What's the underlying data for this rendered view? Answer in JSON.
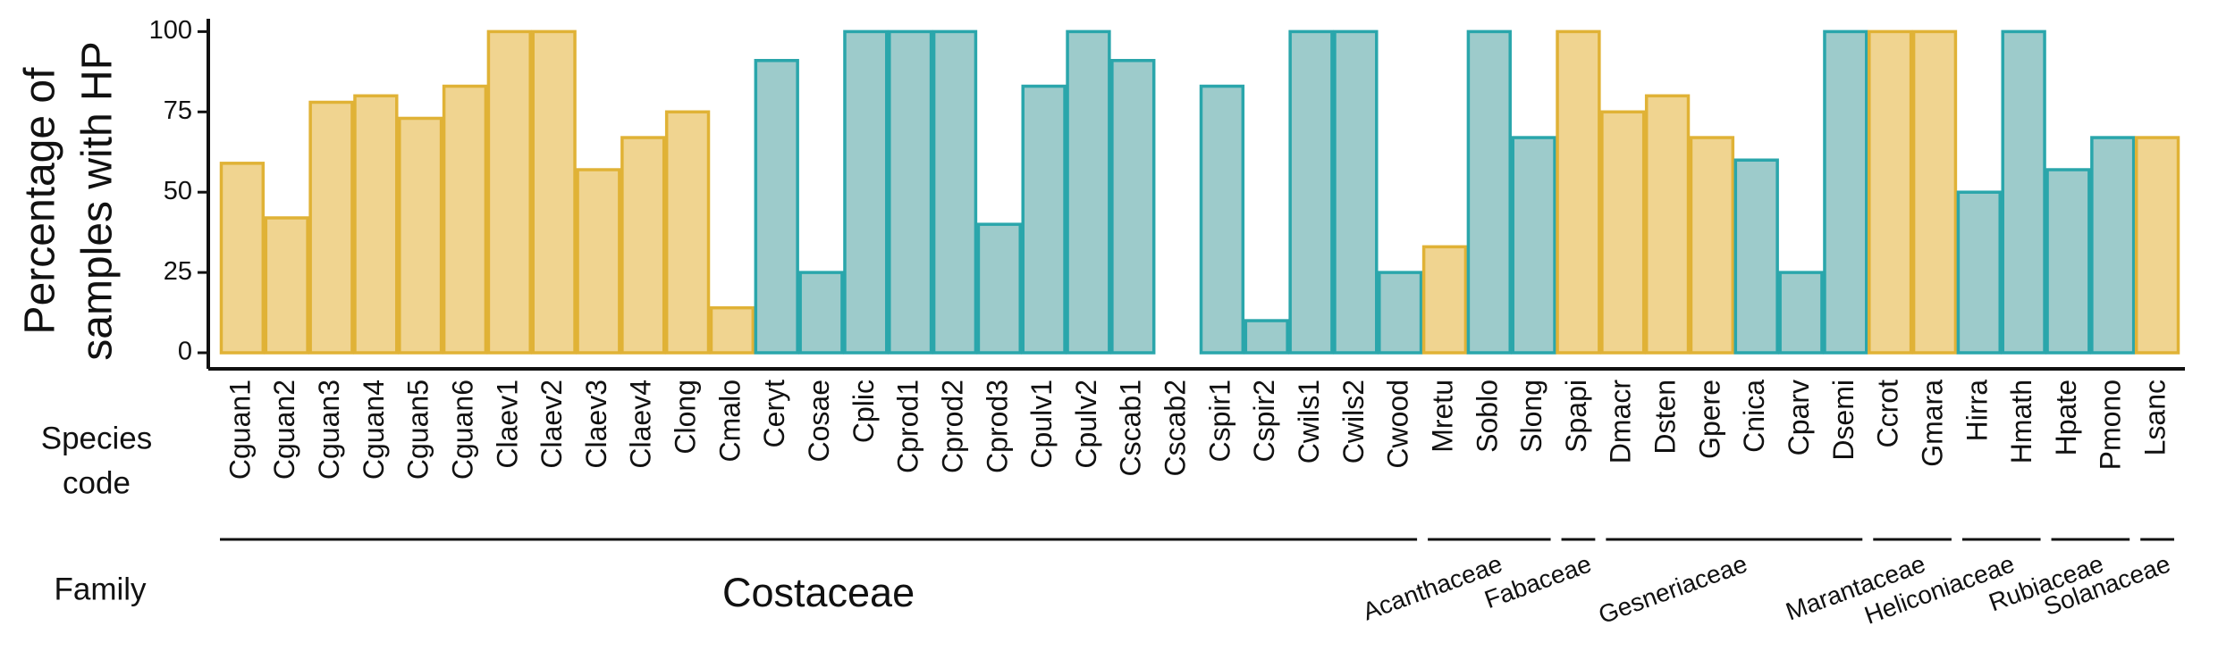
{
  "chart_data": {
    "type": "bar",
    "ylabel": [
      "Percentage of",
      "samples with HP"
    ],
    "xlabel": [
      "Species",
      "code"
    ],
    "group_label": "Family",
    "categories": [
      "Cguan1",
      "Cguan2",
      "Cguan3",
      "Cguan4",
      "Cguan5",
      "Cguan6",
      "Claev1",
      "Claev2",
      "Claev3",
      "Claev4",
      "Clong",
      "Cmalo",
      "Ceryt",
      "Cosae",
      "Cplic",
      "Cprod1",
      "Cprod2",
      "Cprod3",
      "Cpulv1",
      "Cpulv2",
      "Cscab1",
      "Cscab2",
      "Cspir1",
      "Cspir2",
      "Cwils1",
      "Cwils2",
      "Cwood",
      "Mretu",
      "Soblo",
      "Slong",
      "Spapi",
      "Dmacr",
      "Dsten",
      "Gpere",
      "Cnica",
      "Cparv",
      "Dsemi",
      "Ccrot",
      "Gmara",
      "Hirra",
      "Hmath",
      "Hpate",
      "Pmono",
      "Lsanc"
    ],
    "values": [
      59,
      42,
      78,
      80,
      73,
      83,
      100,
      100,
      57,
      67,
      75,
      14,
      91,
      25,
      100,
      100,
      100,
      40,
      83,
      100,
      91,
      0,
      83,
      10,
      100,
      100,
      25,
      33,
      100,
      67,
      100,
      75,
      80,
      67,
      60,
      25,
      100,
      100,
      100,
      50,
      100,
      57,
      67,
      67
    ],
    "colors": [
      "#f0d490",
      "#f0d490",
      "#f0d490",
      "#f0d490",
      "#f0d490",
      "#f0d490",
      "#f0d490",
      "#f0d490",
      "#f0d490",
      "#f0d490",
      "#f0d490",
      "#f0d490",
      "#9dcbcb",
      "#9dcbcb",
      "#9dcbcb",
      "#9dcbcb",
      "#9dcbcb",
      "#9dcbcb",
      "#9dcbcb",
      "#9dcbcb",
      "#9dcbcb",
      "#9dcbcb",
      "#9dcbcb",
      "#9dcbcb",
      "#9dcbcb",
      "#9dcbcb",
      "#9dcbcb",
      "#f0d490",
      "#9dcbcb",
      "#9dcbcb",
      "#f0d490",
      "#f0d490",
      "#f0d490",
      "#f0d490",
      "#9dcbcb",
      "#9dcbcb",
      "#9dcbcb",
      "#f0d490",
      "#f0d490",
      "#9dcbcb",
      "#9dcbcb",
      "#9dcbcb",
      "#9dcbcb",
      "#f0d490"
    ],
    "edgecolors": [
      "#e0b236",
      "#e0b236",
      "#e0b236",
      "#e0b236",
      "#e0b236",
      "#e0b236",
      "#e0b236",
      "#e0b236",
      "#e0b236",
      "#e0b236",
      "#e0b236",
      "#e0b236",
      "#2aa6ab",
      "#2aa6ab",
      "#2aa6ab",
      "#2aa6ab",
      "#2aa6ab",
      "#2aa6ab",
      "#2aa6ab",
      "#2aa6ab",
      "#2aa6ab",
      "#2aa6ab",
      "#2aa6ab",
      "#2aa6ab",
      "#2aa6ab",
      "#2aa6ab",
      "#2aa6ab",
      "#e0b236",
      "#2aa6ab",
      "#2aa6ab",
      "#e0b236",
      "#e0b236",
      "#e0b236",
      "#e0b236",
      "#2aa6ab",
      "#2aa6ab",
      "#2aa6ab",
      "#e0b236",
      "#e0b236",
      "#2aa6ab",
      "#2aa6ab",
      "#2aa6ab",
      "#2aa6ab",
      "#e0b236"
    ],
    "family": [
      "Costaceae",
      "Costaceae",
      "Costaceae",
      "Costaceae",
      "Costaceae",
      "Costaceae",
      "Costaceae",
      "Costaceae",
      "Costaceae",
      "Costaceae",
      "Costaceae",
      "Costaceae",
      "Costaceae",
      "Costaceae",
      "Costaceae",
      "Costaceae",
      "Costaceae",
      "Costaceae",
      "Costaceae",
      "Costaceae",
      "Costaceae",
      "Costaceae",
      "Costaceae",
      "Costaceae",
      "Costaceae",
      "Costaceae",
      "Costaceae",
      "Acanthaceae",
      "Acanthaceae",
      "Acanthaceae",
      "Fabaceae",
      "Gesneriaceae",
      "Gesneriaceae",
      "Gesneriaceae",
      "Gesneriaceae",
      "Gesneriaceae",
      "Gesneriaceae",
      "Marantaceae",
      "Marantaceae",
      "Heliconiaceae",
      "Heliconiaceae",
      "Rubiaceae",
      "Rubiaceae",
      "Solanaceae"
    ],
    "ylim": [
      -5,
      104
    ],
    "yticks": [
      0,
      25,
      50,
      75,
      100
    ]
  }
}
